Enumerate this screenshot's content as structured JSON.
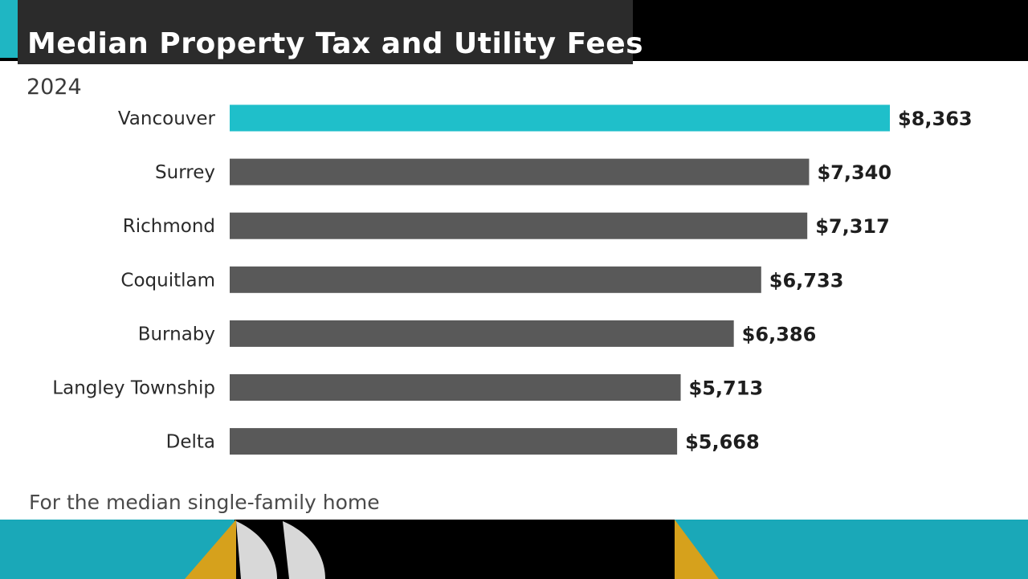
{
  "header": {
    "title": "Median Property Tax and Utility Fees",
    "subtitle": "2024"
  },
  "footnote": "For the median single-family home",
  "colors": {
    "highlight": "#1fbfca",
    "bar": "#595959",
    "teal": "#1aa8b8",
    "gold": "#d6a11c"
  },
  "chart_data": {
    "type": "bar",
    "orientation": "horizontal",
    "title": "Median Property Tax and Utility Fees",
    "subtitle": "2024",
    "categories": [
      "Vancouver",
      "Surrey",
      "Richmond",
      "Coquitlam",
      "Burnaby",
      "Langley Township",
      "Delta"
    ],
    "values": [
      8363,
      7340,
      7317,
      6733,
      6386,
      5713,
      5668
    ],
    "value_labels": [
      "$8,363",
      "$7,340",
      "$7,317",
      "$6,733",
      "$6,386",
      "$5,713",
      "$5,668"
    ],
    "highlighted_category": "Vancouver",
    "xlim": [
      0,
      8363
    ],
    "grid": false,
    "legend": "none"
  }
}
